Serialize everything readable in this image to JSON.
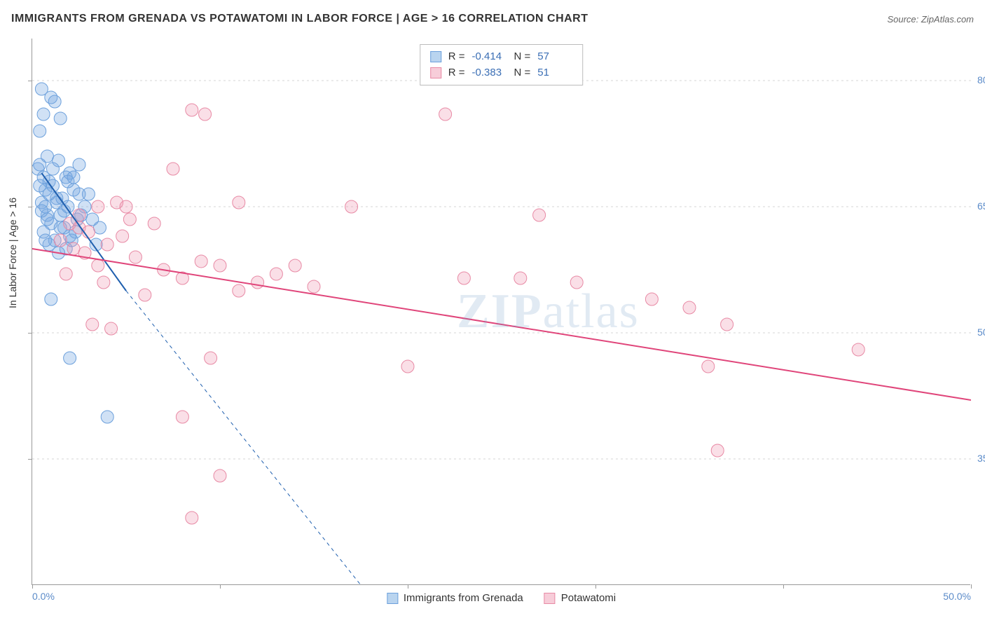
{
  "title": "IMMIGRANTS FROM GRENADA VS POTAWATOMI IN LABOR FORCE | AGE > 16 CORRELATION CHART",
  "source": "Source: ZipAtlas.com",
  "ylabel": "In Labor Force | Age > 16",
  "watermark_bold": "ZIP",
  "watermark_light": "atlas",
  "chart": {
    "type": "scatter",
    "xlim": [
      0,
      50
    ],
    "ylim": [
      20,
      85
    ],
    "y_ticks": [
      35,
      50,
      65,
      80
    ],
    "y_tick_labels": [
      "35.0%",
      "50.0%",
      "65.0%",
      "80.0%"
    ],
    "x_ticks": [
      0,
      10,
      20,
      30,
      40,
      50
    ],
    "x_tick_labels_shown": {
      "0": "0.0%",
      "50": "50.0%"
    },
    "grid_color": "#d5d5d5",
    "axis_color": "#999999",
    "background_color": "#ffffff"
  },
  "series": [
    {
      "name": "Immigrants from Grenada",
      "color_fill": "rgba(120, 170, 225, 0.35)",
      "color_stroke": "#6ca0dc",
      "swatch_fill": "#b9d4ef",
      "swatch_stroke": "#6ca0dc",
      "marker_radius": 9,
      "R": "-0.414",
      "N": "57",
      "regression": {
        "x1": 0.5,
        "y1": 69,
        "x2_solid": 5,
        "y2_solid": 55,
        "x2_dashed": 17.5,
        "y2_dashed": 20,
        "color": "#1f5fae",
        "width": 2
      },
      "points": [
        [
          0.5,
          79
        ],
        [
          1.0,
          78
        ],
        [
          1.2,
          77.5
        ],
        [
          0.6,
          76
        ],
        [
          1.5,
          75.5
        ],
        [
          0.4,
          74
        ],
        [
          0.8,
          71
        ],
        [
          1.4,
          70.5
        ],
        [
          2.5,
          70
        ],
        [
          0.3,
          69.5
        ],
        [
          2.0,
          69
        ],
        [
          1.8,
          68.5
        ],
        [
          0.9,
          68
        ],
        [
          1.1,
          67.5
        ],
        [
          0.7,
          67
        ],
        [
          2.2,
          67
        ],
        [
          3.0,
          66.5
        ],
        [
          1.3,
          66
        ],
        [
          0.5,
          65.5
        ],
        [
          2.8,
          65
        ],
        [
          1.7,
          64.5
        ],
        [
          0.8,
          64
        ],
        [
          2.4,
          63.5
        ],
        [
          1.0,
          63
        ],
        [
          3.2,
          63.5
        ],
        [
          1.5,
          62.5
        ],
        [
          0.6,
          62
        ],
        [
          2.0,
          61.5
        ],
        [
          1.2,
          61
        ],
        [
          0.9,
          60.5
        ],
        [
          1.8,
          60
        ],
        [
          3.4,
          60.5
        ],
        [
          0.4,
          67.5
        ],
        [
          1.6,
          66
        ],
        [
          2.6,
          64
        ],
        [
          1.9,
          68
        ],
        [
          0.7,
          65
        ],
        [
          2.3,
          62
        ],
        [
          3.6,
          62.5
        ],
        [
          1.4,
          59.5
        ],
        [
          0.5,
          64.5
        ],
        [
          1.1,
          69.5
        ],
        [
          2.1,
          61
        ],
        [
          0.8,
          63.5
        ],
        [
          1.3,
          65.5
        ],
        [
          0.6,
          68.5
        ],
        [
          1.7,
          62.5
        ],
        [
          2.5,
          66.5
        ],
        [
          0.9,
          66.5
        ],
        [
          1.0,
          54
        ],
        [
          2.0,
          47
        ],
        [
          4.0,
          40
        ],
        [
          0.4,
          70
        ],
        [
          1.5,
          64
        ],
        [
          2.2,
          68.5
        ],
        [
          0.7,
          61
        ],
        [
          1.9,
          65
        ]
      ]
    },
    {
      "name": "Potawatomi",
      "color_fill": "rgba(240, 150, 175, 0.3)",
      "color_stroke": "#e88aa5",
      "swatch_fill": "#f7cdd9",
      "swatch_stroke": "#e88aa5",
      "marker_radius": 9,
      "R": "-0.383",
      "N": "51",
      "regression": {
        "x1": 0,
        "y1": 60,
        "x2_solid": 50,
        "y2_solid": 42,
        "color": "#e0457a",
        "width": 2
      },
      "points": [
        [
          8.5,
          76.5
        ],
        [
          9.2,
          76
        ],
        [
          22,
          76
        ],
        [
          7.5,
          69.5
        ],
        [
          4.5,
          65.5
        ],
        [
          5.0,
          65
        ],
        [
          11,
          65.5
        ],
        [
          17,
          65
        ],
        [
          27,
          64
        ],
        [
          2.0,
          63
        ],
        [
          2.5,
          62.5
        ],
        [
          3.0,
          62
        ],
        [
          6.5,
          63
        ],
        [
          4.0,
          60.5
        ],
        [
          2.8,
          59.5
        ],
        [
          5.5,
          59
        ],
        [
          9.0,
          58.5
        ],
        [
          3.5,
          58
        ],
        [
          7.0,
          57.5
        ],
        [
          10,
          58
        ],
        [
          13,
          57
        ],
        [
          1.5,
          61
        ],
        [
          2.2,
          60
        ],
        [
          4.8,
          61.5
        ],
        [
          8.0,
          56.5
        ],
        [
          12,
          56
        ],
        [
          15,
          55.5
        ],
        [
          11,
          55
        ],
        [
          6.0,
          54.5
        ],
        [
          3.8,
          56
        ],
        [
          23,
          56.5
        ],
        [
          26,
          56.5
        ],
        [
          29,
          56
        ],
        [
          3.2,
          51
        ],
        [
          4.2,
          50.5
        ],
        [
          9.5,
          47
        ],
        [
          20,
          46
        ],
        [
          35,
          53
        ],
        [
          37,
          51
        ],
        [
          33,
          54
        ],
        [
          44,
          48
        ],
        [
          36,
          46
        ],
        [
          36.5,
          36
        ],
        [
          8.0,
          40
        ],
        [
          10,
          33
        ],
        [
          8.5,
          28
        ],
        [
          1.8,
          57
        ],
        [
          5.2,
          63.5
        ],
        [
          14,
          58
        ],
        [
          2.5,
          64
        ],
        [
          3.5,
          65
        ]
      ]
    }
  ],
  "bottom_legend": [
    {
      "label": "Immigrants from Grenada",
      "swatch_fill": "#b9d4ef",
      "swatch_stroke": "#6ca0dc"
    },
    {
      "label": "Potawatomi",
      "swatch_fill": "#f7cdd9",
      "swatch_stroke": "#e88aa5"
    }
  ]
}
